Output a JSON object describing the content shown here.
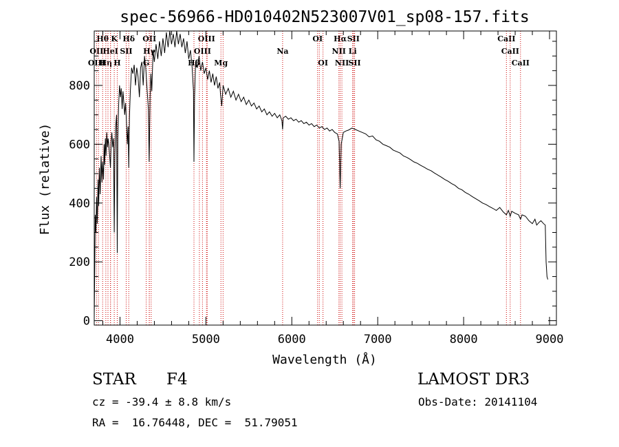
{
  "chart_data": {
    "type": "line",
    "title": "spec-56966-HD010402N523007V01_sp08-157.fits",
    "xlabel": "Wavelength (Å)",
    "ylabel": "Flux (relative)",
    "xlim": [
      3700,
      9080
    ],
    "ylim": [
      -15,
      985
    ],
    "xticks": [
      4000,
      5000,
      6000,
      7000,
      8000,
      9000
    ],
    "yticks": [
      0,
      200,
      400,
      600,
      800
    ],
    "line_color": "#000000",
    "marker_color": "#cc0000",
    "series": [
      {
        "name": "spectrum",
        "points": [
          [
            3700,
            10
          ],
          [
            3705,
            140
          ],
          [
            3712,
            360
          ],
          [
            3720,
            300
          ],
          [
            3728,
            420
          ],
          [
            3735,
            330
          ],
          [
            3745,
            480
          ],
          [
            3752,
            390
          ],
          [
            3760,
            520
          ],
          [
            3770,
            430
          ],
          [
            3780,
            560
          ],
          [
            3790,
            470
          ],
          [
            3798,
            540
          ],
          [
            3808,
            480
          ],
          [
            3815,
            600
          ],
          [
            3822,
            530
          ],
          [
            3830,
            620
          ],
          [
            3838,
            560
          ],
          [
            3846,
            640
          ],
          [
            3855,
            590
          ],
          [
            3862,
            620
          ],
          [
            3870,
            600
          ],
          [
            3880,
            560
          ],
          [
            3889,
            520
          ],
          [
            3898,
            610
          ],
          [
            3905,
            640
          ],
          [
            3915,
            590
          ],
          [
            3925,
            620
          ],
          [
            3933,
            300
          ],
          [
            3940,
            560
          ],
          [
            3950,
            660
          ],
          [
            3960,
            700
          ],
          [
            3968,
            230
          ],
          [
            3975,
            620
          ],
          [
            3985,
            740
          ],
          [
            3995,
            800
          ],
          [
            4005,
            760
          ],
          [
            4015,
            790
          ],
          [
            4025,
            720
          ],
          [
            4035,
            780
          ],
          [
            4045,
            740
          ],
          [
            4055,
            700
          ],
          [
            4065,
            740
          ],
          [
            4075,
            680
          ],
          [
            4085,
            600
          ],
          [
            4095,
            660
          ],
          [
            4102,
            520
          ],
          [
            4110,
            690
          ],
          [
            4120,
            780
          ],
          [
            4135,
            860
          ],
          [
            4150,
            840
          ],
          [
            4165,
            870
          ],
          [
            4180,
            800
          ],
          [
            4195,
            860
          ],
          [
            4210,
            830
          ],
          [
            4226,
            760
          ],
          [
            4240,
            860
          ],
          [
            4255,
            880
          ],
          [
            4270,
            800
          ],
          [
            4285,
            900
          ],
          [
            4300,
            860
          ],
          [
            4315,
            790
          ],
          [
            4330,
            720
          ],
          [
            4340,
            540
          ],
          [
            4350,
            760
          ],
          [
            4360,
            840
          ],
          [
            4370,
            780
          ],
          [
            4385,
            920
          ],
          [
            4400,
            880
          ],
          [
            4420,
            940
          ],
          [
            4440,
            890
          ],
          [
            4460,
            950
          ],
          [
            4480,
            900
          ],
          [
            4500,
            960
          ],
          [
            4520,
            910
          ],
          [
            4540,
            980
          ],
          [
            4560,
            930
          ],
          [
            4580,
            985
          ],
          [
            4600,
            940
          ],
          [
            4620,
            975
          ],
          [
            4640,
            930
          ],
          [
            4660,
            985
          ],
          [
            4680,
            940
          ],
          [
            4700,
            975
          ],
          [
            4720,
            930
          ],
          [
            4740,
            960
          ],
          [
            4760,
            910
          ],
          [
            4780,
            950
          ],
          [
            4800,
            890
          ],
          [
            4820,
            920
          ],
          [
            4840,
            860
          ],
          [
            4855,
            780
          ],
          [
            4861,
            540
          ],
          [
            4868,
            760
          ],
          [
            4880,
            880
          ],
          [
            4900,
            860
          ],
          [
            4920,
            900
          ],
          [
            4940,
            850
          ],
          [
            4960,
            880
          ],
          [
            4980,
            840
          ],
          [
            5000,
            860
          ],
          [
            5020,
            820
          ],
          [
            5040,
            850
          ],
          [
            5060,
            810
          ],
          [
            5080,
            840
          ],
          [
            5100,
            800
          ],
          [
            5120,
            830
          ],
          [
            5140,
            790
          ],
          [
            5160,
            810
          ],
          [
            5170,
            770
          ],
          [
            5184,
            730
          ],
          [
            5200,
            800
          ],
          [
            5230,
            770
          ],
          [
            5260,
            790
          ],
          [
            5290,
            760
          ],
          [
            5320,
            780
          ],
          [
            5350,
            750
          ],
          [
            5380,
            770
          ],
          [
            5410,
            745
          ],
          [
            5440,
            760
          ],
          [
            5470,
            735
          ],
          [
            5500,
            750
          ],
          [
            5530,
            730
          ],
          [
            5560,
            740
          ],
          [
            5590,
            720
          ],
          [
            5620,
            730
          ],
          [
            5650,
            710
          ],
          [
            5680,
            720
          ],
          [
            5710,
            700
          ],
          [
            5740,
            710
          ],
          [
            5770,
            695
          ],
          [
            5800,
            705
          ],
          [
            5830,
            690
          ],
          [
            5860,
            700
          ],
          [
            5885,
            680
          ],
          [
            5893,
            650
          ],
          [
            5900,
            690
          ],
          [
            5930,
            695
          ],
          [
            5960,
            685
          ],
          [
            5990,
            690
          ],
          [
            6020,
            680
          ],
          [
            6050,
            685
          ],
          [
            6080,
            675
          ],
          [
            6110,
            680
          ],
          [
            6140,
            670
          ],
          [
            6170,
            675
          ],
          [
            6200,
            665
          ],
          [
            6230,
            670
          ],
          [
            6260,
            660
          ],
          [
            6290,
            665
          ],
          [
            6320,
            655
          ],
          [
            6350,
            660
          ],
          [
            6380,
            650
          ],
          [
            6410,
            655
          ],
          [
            6440,
            645
          ],
          [
            6470,
            650
          ],
          [
            6500,
            640
          ],
          [
            6530,
            635
          ],
          [
            6550,
            610
          ],
          [
            6563,
            450
          ],
          [
            6575,
            600
          ],
          [
            6600,
            640
          ],
          [
            6630,
            645
          ],
          [
            6660,
            648
          ],
          [
            6700,
            655
          ],
          [
            6740,
            650
          ],
          [
            6780,
            645
          ],
          [
            6820,
            640
          ],
          [
            6860,
            635
          ],
          [
            6900,
            625
          ],
          [
            6940,
            628
          ],
          [
            6980,
            615
          ],
          [
            7020,
            610
          ],
          [
            7060,
            600
          ],
          [
            7100,
            595
          ],
          [
            7140,
            590
          ],
          [
            7180,
            580
          ],
          [
            7220,
            575
          ],
          [
            7260,
            570
          ],
          [
            7300,
            560
          ],
          [
            7340,
            555
          ],
          [
            7380,
            548
          ],
          [
            7420,
            540
          ],
          [
            7460,
            535
          ],
          [
            7500,
            528
          ],
          [
            7540,
            522
          ],
          [
            7580,
            515
          ],
          [
            7620,
            510
          ],
          [
            7660,
            502
          ],
          [
            7700,
            495
          ],
          [
            7740,
            488
          ],
          [
            7780,
            480
          ],
          [
            7820,
            474
          ],
          [
            7860,
            466
          ],
          [
            7900,
            460
          ],
          [
            7940,
            450
          ],
          [
            7980,
            445
          ],
          [
            8020,
            436
          ],
          [
            8060,
            430
          ],
          [
            8100,
            422
          ],
          [
            8140,
            415
          ],
          [
            8180,
            408
          ],
          [
            8220,
            400
          ],
          [
            8260,
            395
          ],
          [
            8300,
            388
          ],
          [
            8340,
            382
          ],
          [
            8380,
            375
          ],
          [
            8420,
            385
          ],
          [
            8460,
            370
          ],
          [
            8498,
            360
          ],
          [
            8520,
            375
          ],
          [
            8542,
            355
          ],
          [
            8560,
            372
          ],
          [
            8600,
            365
          ],
          [
            8640,
            360
          ],
          [
            8662,
            345
          ],
          [
            8680,
            360
          ],
          [
            8720,
            355
          ],
          [
            8760,
            340
          ],
          [
            8800,
            330
          ],
          [
            8830,
            345
          ],
          [
            8850,
            325
          ],
          [
            8880,
            335
          ],
          [
            8900,
            340
          ],
          [
            8930,
            330
          ],
          [
            8950,
            325
          ],
          [
            8960,
            200
          ],
          [
            8970,
            150
          ],
          [
            8980,
            140
          ]
        ]
      }
    ],
    "line_markers": [
      {
        "label": "Hθ",
        "wavelength": 3798,
        "row": 0
      },
      {
        "label": "K",
        "wavelength": 3933,
        "row": 0
      },
      {
        "label": "Hδ",
        "wavelength": 4102,
        "row": 0
      },
      {
        "label": "OII",
        "wavelength": 4342,
        "row": 0
      },
      {
        "label": "OIII",
        "wavelength": 5007,
        "row": 0
      },
      {
        "label": "OI",
        "wavelength": 6300,
        "row": 0
      },
      {
        "label": "Hα",
        "wavelength": 6563,
        "row": 0
      },
      {
        "label": "SII",
        "wavelength": 6717,
        "row": 0
      },
      {
        "label": "CaII",
        "wavelength": 8498,
        "row": 0
      },
      {
        "label": "OII",
        "wavelength": 3727,
        "row": 1
      },
      {
        "label": "HeI",
        "wavelength": 3889,
        "row": 1
      },
      {
        "label": "SII",
        "wavelength": 4072,
        "row": 1
      },
      {
        "label": "Hγ",
        "wavelength": 4340,
        "row": 1
      },
      {
        "label": "OIII",
        "wavelength": 4960,
        "row": 1
      },
      {
        "label": "Na",
        "wavelength": 5893,
        "row": 1
      },
      {
        "label": "NII",
        "wavelength": 6548,
        "row": 1
      },
      {
        "label": "Li",
        "wavelength": 6708,
        "row": 1
      },
      {
        "label": "CaII",
        "wavelength": 8542,
        "row": 1
      },
      {
        "label": "OIII",
        "wavelength": 3727,
        "row": 2
      },
      {
        "label": "Hη",
        "wavelength": 3835,
        "row": 2
      },
      {
        "label": "H",
        "wavelength": 3968,
        "row": 2
      },
      {
        "label": "G",
        "wavelength": 4305,
        "row": 2
      },
      {
        "label": "Hβ",
        "wavelength": 4861,
        "row": 2
      },
      {
        "label": "Mg",
        "wavelength": 5175,
        "row": 2
      },
      {
        "label": "OI",
        "wavelength": 6363,
        "row": 2
      },
      {
        "label": "NII",
        "wavelength": 6583,
        "row": 2
      },
      {
        "label": "SII",
        "wavelength": 6731,
        "row": 2
      },
      {
        "label": "CaII",
        "wavelength": 8662,
        "row": 2
      }
    ],
    "extra_marker_lines": [
      3750,
      3860,
      3890,
      4363,
      4924,
      5015,
      5200,
      6320
    ]
  },
  "info": {
    "object_class": "STAR",
    "subclass": "F4",
    "survey": "LAMOST DR3",
    "velocity": "cz = -39.4 ± 8.8 km/s",
    "obs_date": "Obs-Date: 20141104",
    "coords": "RA =  16.76448, DEC =  51.79051"
  }
}
